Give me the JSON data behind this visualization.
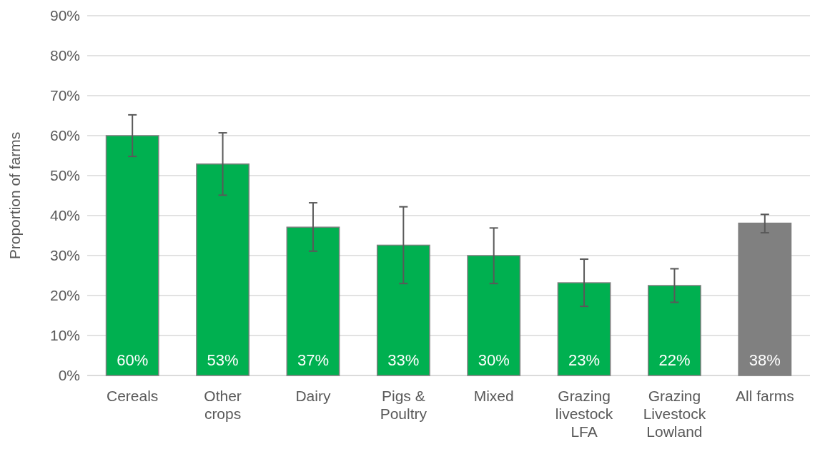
{
  "chart_data": {
    "type": "bar",
    "ylabel": "Proportion of farms",
    "categories": [
      "Cereals",
      "Other crops",
      "Dairy",
      "Pigs & Poultry",
      "Mixed",
      "Grazing livestock LFA",
      "Grazing Livestock Lowland",
      "All farms"
    ],
    "values": [
      60.0,
      52.9,
      37.1,
      32.6,
      30.0,
      23.2,
      22.5,
      38.1
    ],
    "colors": [
      "#00b050",
      "#00b050",
      "#00b050",
      "#00b050",
      "#00b050",
      "#00b050",
      "#00b050",
      "#808080"
    ],
    "errors": [
      [
        54.8,
        65.2
      ],
      [
        45.1,
        60.7
      ],
      [
        31.1,
        43.2
      ],
      [
        23.0,
        42.2
      ],
      [
        23.0,
        36.9
      ],
      [
        17.3,
        29.1
      ],
      [
        18.3,
        26.7
      ],
      [
        35.7,
        40.3
      ]
    ],
    "value_labels": [
      "60%",
      "53%",
      "37%",
      "33%",
      "30%",
      "23%",
      "22%",
      "38%"
    ],
    "ylim": [
      0,
      90
    ],
    "yticks": [
      {
        "value": 0,
        "label": "0%"
      },
      {
        "value": 10,
        "label": "10%"
      },
      {
        "value": 20,
        "label": "20%"
      },
      {
        "value": 30,
        "label": "30%"
      },
      {
        "value": 40,
        "label": "40%"
      },
      {
        "value": 50,
        "label": "50%"
      },
      {
        "value": 60,
        "label": "60%"
      },
      {
        "value": 70,
        "label": "70%"
      },
      {
        "value": 80,
        "label": "80%"
      },
      {
        "value": 90,
        "label": "90%"
      }
    ],
    "grid": "y"
  }
}
